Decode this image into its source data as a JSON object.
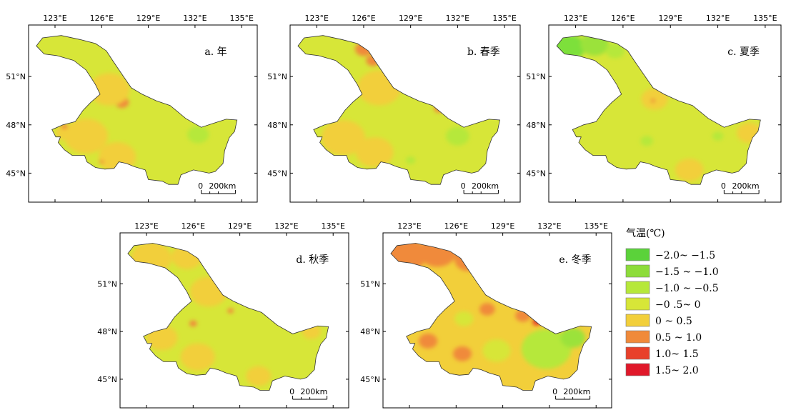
{
  "panels": [
    {
      "id": "a",
      "label": "a. 年",
      "base": "#d7e638",
      "blobs": [
        {
          "lon": 127.3,
          "lat": 49.4,
          "r": 0.45,
          "color": "#f08a3a"
        },
        {
          "lon": 126.5,
          "lat": 50.2,
          "r": 1.3,
          "color": "#f2cf3a"
        },
        {
          "lon": 125.0,
          "lat": 47.3,
          "r": 1.4,
          "color": "#f2cf3a"
        },
        {
          "lon": 127.0,
          "lat": 46.0,
          "r": 1.2,
          "color": "#f2cf3a"
        },
        {
          "lon": 123.6,
          "lat": 47.5,
          "r": 0.55,
          "color": "#f2cf3a"
        },
        {
          "lon": 132.2,
          "lat": 47.4,
          "r": 0.7,
          "color": "#b6e83a"
        },
        {
          "lon": 123.6,
          "lat": 47.9,
          "r": 0.22,
          "color": "#f08a3a"
        },
        {
          "lon": 126.0,
          "lat": 45.7,
          "r": 0.15,
          "color": "#f08a3a"
        }
      ]
    },
    {
      "id": "b",
      "label": "b. 春季",
      "base": "#d7e638",
      "blobs": [
        {
          "lon": 126.0,
          "lat": 52.7,
          "r": 0.55,
          "color": "#f08a3a"
        },
        {
          "lon": 126.6,
          "lat": 52.0,
          "r": 0.45,
          "color": "#f08a3a"
        },
        {
          "lon": 127.0,
          "lat": 49.7,
          "r": 0.6,
          "color": "#f08a3a"
        },
        {
          "lon": 127.0,
          "lat": 50.3,
          "r": 1.4,
          "color": "#f2cf3a"
        },
        {
          "lon": 124.7,
          "lat": 47.2,
          "r": 1.4,
          "color": "#f2cf3a"
        },
        {
          "lon": 126.7,
          "lat": 46.3,
          "r": 1.2,
          "color": "#f2cf3a"
        },
        {
          "lon": 130.8,
          "lat": 49.0,
          "r": 0.3,
          "color": "#f08a3a"
        },
        {
          "lon": 132.0,
          "lat": 47.3,
          "r": 0.75,
          "color": "#b6e83a"
        },
        {
          "lon": 129.0,
          "lat": 45.8,
          "r": 0.3,
          "color": "#b6e83a"
        }
      ]
    },
    {
      "id": "c",
      "label": "c. 夏季",
      "base": "#d7e638",
      "blobs": [
        {
          "lon": 122.6,
          "lat": 52.8,
          "r": 1.0,
          "color": "#7de03a"
        },
        {
          "lon": 124.2,
          "lat": 53.0,
          "r": 0.9,
          "color": "#9be23a"
        },
        {
          "lon": 125.5,
          "lat": 52.6,
          "r": 0.6,
          "color": "#b6e83a"
        },
        {
          "lon": 128.0,
          "lat": 49.6,
          "r": 0.85,
          "color": "#f2cf3a"
        },
        {
          "lon": 127.9,
          "lat": 49.5,
          "r": 0.15,
          "color": "#f08a3a"
        },
        {
          "lon": 134.0,
          "lat": 47.5,
          "r": 0.8,
          "color": "#f2cf3a"
        },
        {
          "lon": 130.2,
          "lat": 45.2,
          "r": 0.9,
          "color": "#f2cf3a"
        },
        {
          "lon": 127.5,
          "lat": 47.0,
          "r": 0.4,
          "color": "#b6e83a"
        },
        {
          "lon": 132.0,
          "lat": 47.3,
          "r": 0.35,
          "color": "#b6e83a"
        }
      ]
    },
    {
      "id": "d",
      "label": "d. 秋季",
      "base": "#d7e638",
      "blobs": [
        {
          "lon": 123.3,
          "lat": 52.6,
          "r": 1.3,
          "color": "#f2cf3a"
        },
        {
          "lon": 125.6,
          "lat": 52.7,
          "r": 1.0,
          "color": "#f2cf3a"
        },
        {
          "lon": 127.0,
          "lat": 50.5,
          "r": 1.2,
          "color": "#f2cf3a"
        },
        {
          "lon": 126.0,
          "lat": 48.5,
          "r": 0.25,
          "color": "#f08a3a"
        },
        {
          "lon": 128.4,
          "lat": 49.3,
          "r": 0.2,
          "color": "#f08a3a"
        },
        {
          "lon": 124.0,
          "lat": 47.6,
          "r": 1.0,
          "color": "#f2cf3a"
        },
        {
          "lon": 126.3,
          "lat": 46.4,
          "r": 1.1,
          "color": "#f2cf3a"
        },
        {
          "lon": 130.2,
          "lat": 45.2,
          "r": 0.8,
          "color": "#f2cf3a"
        },
        {
          "lon": 133.6,
          "lat": 48.0,
          "r": 0.6,
          "color": "#f2cf3a"
        }
      ]
    },
    {
      "id": "e",
      "label": "e. 冬季",
      "base": "#f2cf3a",
      "blobs": [
        {
          "lon": 122.8,
          "lat": 52.8,
          "r": 1.3,
          "color": "#f08a3a"
        },
        {
          "lon": 124.8,
          "lat": 53.0,
          "r": 1.2,
          "color": "#f08a3a"
        },
        {
          "lon": 126.8,
          "lat": 52.5,
          "r": 0.9,
          "color": "#f08a3a"
        },
        {
          "lon": 128.0,
          "lat": 49.4,
          "r": 0.5,
          "color": "#f08a3a"
        },
        {
          "lon": 130.3,
          "lat": 49.0,
          "r": 0.5,
          "color": "#f08a3a"
        },
        {
          "lon": 131.2,
          "lat": 48.6,
          "r": 0.3,
          "color": "#e8402a"
        },
        {
          "lon": 124.2,
          "lat": 47.4,
          "r": 0.6,
          "color": "#f08a3a"
        },
        {
          "lon": 126.4,
          "lat": 46.6,
          "r": 0.6,
          "color": "#f08a3a"
        },
        {
          "lon": 131.8,
          "lat": 46.9,
          "r": 1.6,
          "color": "#b6e83a"
        },
        {
          "lon": 133.5,
          "lat": 47.6,
          "r": 0.8,
          "color": "#9be23a"
        },
        {
          "lon": 126.5,
          "lat": 48.8,
          "r": 0.6,
          "color": "#d7e638"
        },
        {
          "lon": 128.6,
          "lat": 46.8,
          "r": 0.9,
          "color": "#d7e638"
        }
      ]
    }
  ],
  "x_ticks": [
    "123°E",
    "126°E",
    "129°E",
    "132°E",
    "135°E"
  ],
  "y_ticks": [
    "51°N",
    "48°N",
    "45°N"
  ],
  "scale": {
    "zero": "0",
    "distance": "200km"
  },
  "legend": {
    "title": "气温(℃)",
    "items": [
      {
        "label": "−2.0~ −1.5",
        "color": "#5bd23a"
      },
      {
        "label": "−1.5 ~ −1.0",
        "color": "#8ddc3a"
      },
      {
        "label": "−1.0 ~ −0.5",
        "color": "#b6e83a"
      },
      {
        "label": "−0 .5~ 0",
        "color": "#d7e638"
      },
      {
        "label": "0 ~ 0.5",
        "color": "#f2cf3a"
      },
      {
        "label": "0.5 ~ 1.0",
        "color": "#f08a3a"
      },
      {
        "label": "1.0~ 1.5",
        "color": "#e8402a"
      },
      {
        "label": "1.5~ 2.0",
        "color": "#e0182a"
      }
    ]
  }
}
